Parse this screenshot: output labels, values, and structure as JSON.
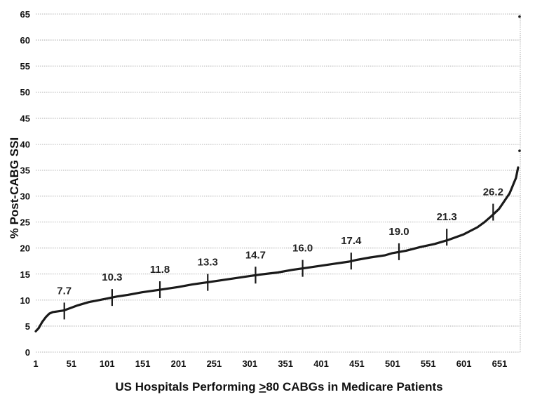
{
  "chart_data": {
    "type": "line",
    "title": "",
    "xlabel_parts": [
      "US Hospitals Performing ",
      ">",
      "80 CABGs in Medicare Patients"
    ],
    "ylabel": "% Post-CABG SSI",
    "xlim": [
      1,
      680
    ],
    "ylim": [
      0,
      65
    ],
    "grid": true,
    "x_ticks": [
      "1",
      "51",
      "101",
      "151",
      "201",
      "251",
      "301",
      "351",
      "401",
      "451",
      "501",
      "551",
      "601",
      "651"
    ],
    "y_ticks": [
      "0",
      "5",
      "10",
      "15",
      "20",
      "25",
      "30",
      "35",
      "40",
      "45",
      "50",
      "55",
      "60",
      "65"
    ],
    "series": [
      {
        "x": [
          1,
          5,
          10,
          15,
          20,
          25,
          30,
          35,
          40,
          50,
          60,
          75,
          90,
          101,
          115,
          130,
          150,
          170,
          180,
          200,
          220,
          245,
          270,
          300,
          315,
          340,
          360,
          380,
          400,
          420,
          440,
          450,
          470,
          490,
          500,
          520,
          540,
          560,
          580,
          600,
          620,
          630,
          640,
          650,
          655,
          660,
          665,
          668,
          671,
          674,
          677
        ],
        "values": [
          4.0,
          4.6,
          5.8,
          6.7,
          7.4,
          7.7,
          7.8,
          7.9,
          8.0,
          8.5,
          9.0,
          9.6,
          10.0,
          10.3,
          10.7,
          11.0,
          11.5,
          11.9,
          12.1,
          12.5,
          13.0,
          13.5,
          14.0,
          14.6,
          14.9,
          15.3,
          15.8,
          16.2,
          16.6,
          17.0,
          17.4,
          17.7,
          18.2,
          18.6,
          19.0,
          19.5,
          20.2,
          20.8,
          21.6,
          22.6,
          24.0,
          25.0,
          26.2,
          27.5,
          28.5,
          29.5,
          30.5,
          31.5,
          32.5,
          33.5,
          35.5
        ]
      }
    ],
    "outliers": [
      {
        "x": 679,
        "y": 38.7
      },
      {
        "x": 679,
        "y": 64.5
      }
    ],
    "markers": [
      {
        "x": 41,
        "y": 7.9,
        "label": "7.7"
      },
      {
        "x": 108,
        "y": 10.5,
        "label": "10.3"
      },
      {
        "x": 175,
        "y": 12.0,
        "label": "11.8"
      },
      {
        "x": 242,
        "y": 13.4,
        "label": "13.3"
      },
      {
        "x": 309,
        "y": 14.8,
        "label": "14.7"
      },
      {
        "x": 375,
        "y": 16.1,
        "label": "16.0"
      },
      {
        "x": 443,
        "y": 17.5,
        "label": "17.4"
      },
      {
        "x": 510,
        "y": 19.3,
        "label": "19.0"
      },
      {
        "x": 577,
        "y": 22.1,
        "label": "21.3"
      },
      {
        "x": 642,
        "y": 26.9,
        "label": "26.2"
      }
    ]
  }
}
